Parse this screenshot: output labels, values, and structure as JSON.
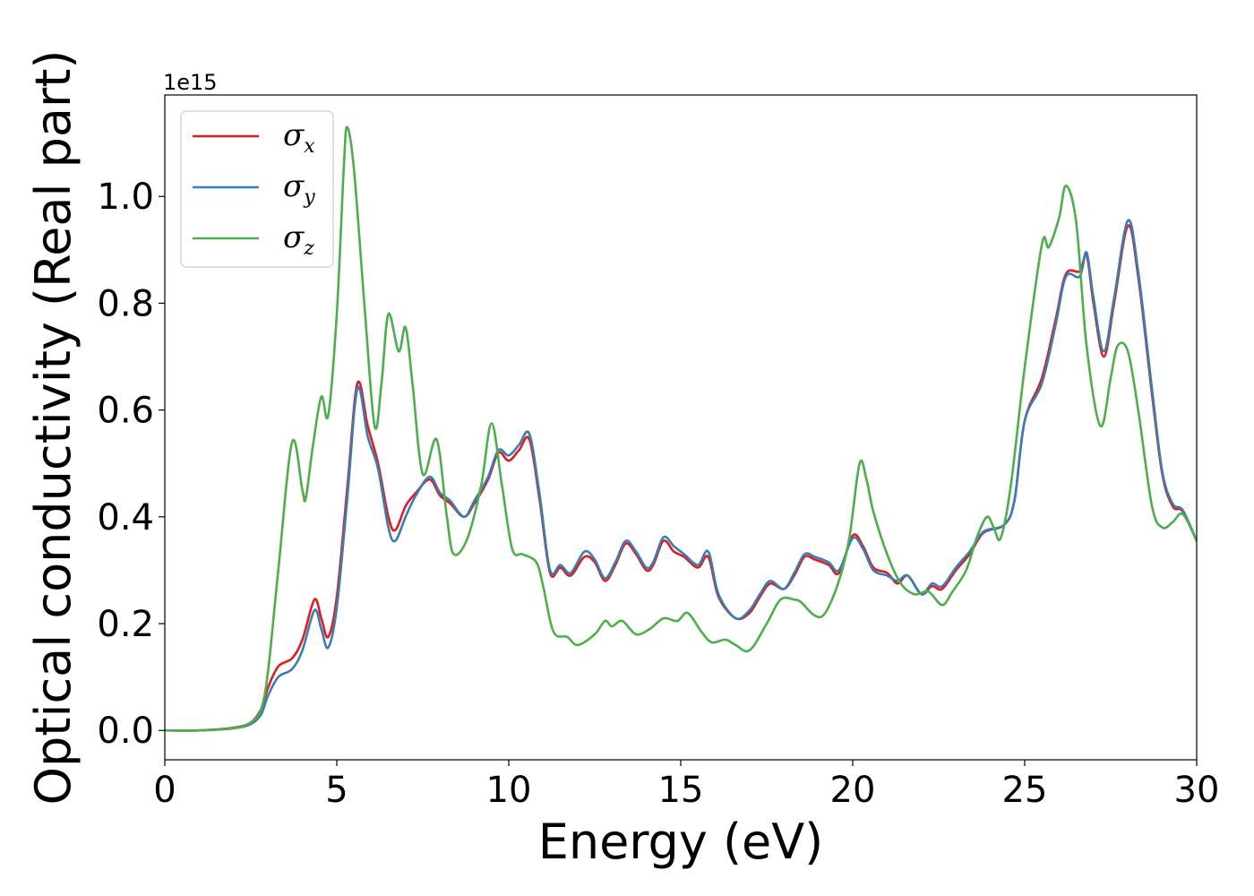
{
  "chart_data": {
    "type": "line",
    "xlabel": "Energy (eV)",
    "ylabel": "Optical conductivity (Real part)",
    "y_offset_text": "1e15",
    "xlim": [
      0,
      30
    ],
    "ylim": [
      -0.055,
      1.19
    ],
    "x_ticks": [
      0,
      5,
      10,
      15,
      20,
      25,
      30
    ],
    "x_tick_labels": [
      "0",
      "5",
      "10",
      "15",
      "20",
      "25",
      "30"
    ],
    "y_ticks": [
      0.0,
      0.2,
      0.4,
      0.6,
      0.8,
      1.0
    ],
    "y_tick_labels": [
      "0.0",
      "0.2",
      "0.4",
      "0.6",
      "0.8",
      "1.0"
    ],
    "grid": false,
    "legend_position": "upper-left",
    "series": [
      {
        "name": "σx",
        "base": "σ",
        "sub": "x",
        "color": "#e41a1c",
        "points": [
          [
            0,
            0
          ],
          [
            1,
            0
          ],
          [
            2,
            0.005
          ],
          [
            2.5,
            0.015
          ],
          [
            2.8,
            0.04
          ],
          [
            3.0,
            0.08
          ],
          [
            3.3,
            0.12
          ],
          [
            3.7,
            0.135
          ],
          [
            4.0,
            0.17
          ],
          [
            4.35,
            0.245
          ],
          [
            4.55,
            0.21
          ],
          [
            4.75,
            0.175
          ],
          [
            5.0,
            0.25
          ],
          [
            5.3,
            0.45
          ],
          [
            5.6,
            0.65
          ],
          [
            5.9,
            0.57
          ],
          [
            6.2,
            0.5
          ],
          [
            6.5,
            0.4
          ],
          [
            6.7,
            0.375
          ],
          [
            7.0,
            0.42
          ],
          [
            7.3,
            0.445
          ],
          [
            7.7,
            0.47
          ],
          [
            8.0,
            0.44
          ],
          [
            8.3,
            0.425
          ],
          [
            8.7,
            0.4
          ],
          [
            9.0,
            0.425
          ],
          [
            9.4,
            0.47
          ],
          [
            9.7,
            0.52
          ],
          [
            10.0,
            0.505
          ],
          [
            10.3,
            0.525
          ],
          [
            10.6,
            0.545
          ],
          [
            10.9,
            0.43
          ],
          [
            11.2,
            0.295
          ],
          [
            11.5,
            0.305
          ],
          [
            11.8,
            0.29
          ],
          [
            12.2,
            0.325
          ],
          [
            12.5,
            0.315
          ],
          [
            12.8,
            0.28
          ],
          [
            13.1,
            0.31
          ],
          [
            13.4,
            0.35
          ],
          [
            13.7,
            0.33
          ],
          [
            14.0,
            0.3
          ],
          [
            14.2,
            0.31
          ],
          [
            14.5,
            0.355
          ],
          [
            14.8,
            0.335
          ],
          [
            15.1,
            0.325
          ],
          [
            15.5,
            0.305
          ],
          [
            15.8,
            0.325
          ],
          [
            16.1,
            0.25
          ],
          [
            16.6,
            0.21
          ],
          [
            17.0,
            0.22
          ],
          [
            17.3,
            0.25
          ],
          [
            17.6,
            0.275
          ],
          [
            18.0,
            0.265
          ],
          [
            18.3,
            0.29
          ],
          [
            18.6,
            0.325
          ],
          [
            18.9,
            0.32
          ],
          [
            19.3,
            0.31
          ],
          [
            19.6,
            0.295
          ],
          [
            20.0,
            0.365
          ],
          [
            20.3,
            0.345
          ],
          [
            20.6,
            0.305
          ],
          [
            21.0,
            0.295
          ],
          [
            21.3,
            0.275
          ],
          [
            21.6,
            0.29
          ],
          [
            22.0,
            0.255
          ],
          [
            22.3,
            0.27
          ],
          [
            22.6,
            0.265
          ],
          [
            23.0,
            0.3
          ],
          [
            23.4,
            0.33
          ],
          [
            23.8,
            0.37
          ],
          [
            24.4,
            0.385
          ],
          [
            24.7,
            0.43
          ],
          [
            25.0,
            0.58
          ],
          [
            25.5,
            0.66
          ],
          [
            25.9,
            0.77
          ],
          [
            26.2,
            0.855
          ],
          [
            26.6,
            0.86
          ],
          [
            26.8,
            0.89
          ],
          [
            27.0,
            0.8
          ],
          [
            27.3,
            0.7
          ],
          [
            27.6,
            0.8
          ],
          [
            28.0,
            0.945
          ],
          [
            28.3,
            0.85
          ],
          [
            28.7,
            0.63
          ],
          [
            29.0,
            0.48
          ],
          [
            29.3,
            0.42
          ],
          [
            29.6,
            0.41
          ],
          [
            30.0,
            0.355
          ]
        ]
      },
      {
        "name": "σy",
        "base": "σ",
        "sub": "y",
        "color": "#377eb8",
        "points": [
          [
            0,
            0
          ],
          [
            1,
            0
          ],
          [
            2,
            0.004
          ],
          [
            2.5,
            0.012
          ],
          [
            2.8,
            0.03
          ],
          [
            3.0,
            0.065
          ],
          [
            3.3,
            0.1
          ],
          [
            3.7,
            0.115
          ],
          [
            4.0,
            0.15
          ],
          [
            4.35,
            0.225
          ],
          [
            4.55,
            0.19
          ],
          [
            4.75,
            0.155
          ],
          [
            5.0,
            0.23
          ],
          [
            5.3,
            0.43
          ],
          [
            5.6,
            0.64
          ],
          [
            5.9,
            0.55
          ],
          [
            6.2,
            0.49
          ],
          [
            6.5,
            0.38
          ],
          [
            6.7,
            0.355
          ],
          [
            7.0,
            0.4
          ],
          [
            7.3,
            0.44
          ],
          [
            7.7,
            0.475
          ],
          [
            8.0,
            0.445
          ],
          [
            8.3,
            0.43
          ],
          [
            8.7,
            0.4
          ],
          [
            9.0,
            0.43
          ],
          [
            9.4,
            0.475
          ],
          [
            9.7,
            0.525
          ],
          [
            10.0,
            0.515
          ],
          [
            10.3,
            0.535
          ],
          [
            10.6,
            0.555
          ],
          [
            10.9,
            0.44
          ],
          [
            11.2,
            0.3
          ],
          [
            11.5,
            0.31
          ],
          [
            11.8,
            0.295
          ],
          [
            12.2,
            0.335
          ],
          [
            12.5,
            0.32
          ],
          [
            12.8,
            0.285
          ],
          [
            13.1,
            0.315
          ],
          [
            13.4,
            0.355
          ],
          [
            13.7,
            0.335
          ],
          [
            14.0,
            0.305
          ],
          [
            14.2,
            0.315
          ],
          [
            14.5,
            0.362
          ],
          [
            14.8,
            0.345
          ],
          [
            15.1,
            0.33
          ],
          [
            15.5,
            0.31
          ],
          [
            15.8,
            0.335
          ],
          [
            16.1,
            0.255
          ],
          [
            16.6,
            0.21
          ],
          [
            17.0,
            0.225
          ],
          [
            17.3,
            0.255
          ],
          [
            17.6,
            0.28
          ],
          [
            18.0,
            0.265
          ],
          [
            18.3,
            0.295
          ],
          [
            18.6,
            0.33
          ],
          [
            18.9,
            0.325
          ],
          [
            19.3,
            0.315
          ],
          [
            19.6,
            0.3
          ],
          [
            20.0,
            0.36
          ],
          [
            20.3,
            0.34
          ],
          [
            20.6,
            0.3
          ],
          [
            21.0,
            0.29
          ],
          [
            21.3,
            0.28
          ],
          [
            21.6,
            0.29
          ],
          [
            22.0,
            0.255
          ],
          [
            22.3,
            0.275
          ],
          [
            22.6,
            0.27
          ],
          [
            23.0,
            0.305
          ],
          [
            23.4,
            0.335
          ],
          [
            23.8,
            0.372
          ],
          [
            24.4,
            0.385
          ],
          [
            24.7,
            0.43
          ],
          [
            25.0,
            0.58
          ],
          [
            25.5,
            0.65
          ],
          [
            25.9,
            0.76
          ],
          [
            26.2,
            0.85
          ],
          [
            26.6,
            0.85
          ],
          [
            26.8,
            0.895
          ],
          [
            27.0,
            0.81
          ],
          [
            27.3,
            0.71
          ],
          [
            27.6,
            0.81
          ],
          [
            28.0,
            0.955
          ],
          [
            28.3,
            0.86
          ],
          [
            28.7,
            0.64
          ],
          [
            29.0,
            0.485
          ],
          [
            29.3,
            0.425
          ],
          [
            29.6,
            0.412
          ],
          [
            30.0,
            0.355
          ]
        ]
      },
      {
        "name": "σz",
        "base": "σ",
        "sub": "z",
        "color": "#4daf4a",
        "points": [
          [
            0,
            0
          ],
          [
            1,
            0
          ],
          [
            2,
            0.004
          ],
          [
            2.5,
            0.015
          ],
          [
            2.8,
            0.04
          ],
          [
            3.0,
            0.11
          ],
          [
            3.3,
            0.3
          ],
          [
            3.7,
            0.54
          ],
          [
            4.0,
            0.45
          ],
          [
            4.1,
            0.435
          ],
          [
            4.3,
            0.53
          ],
          [
            4.55,
            0.625
          ],
          [
            4.75,
            0.59
          ],
          [
            5.0,
            0.78
          ],
          [
            5.2,
            1.05
          ],
          [
            5.3,
            1.13
          ],
          [
            5.5,
            1.05
          ],
          [
            5.8,
            0.8
          ],
          [
            6.1,
            0.57
          ],
          [
            6.3,
            0.65
          ],
          [
            6.5,
            0.78
          ],
          [
            6.8,
            0.71
          ],
          [
            7.0,
            0.755
          ],
          [
            7.2,
            0.65
          ],
          [
            7.5,
            0.48
          ],
          [
            7.9,
            0.545
          ],
          [
            8.2,
            0.4
          ],
          [
            8.4,
            0.33
          ],
          [
            8.8,
            0.36
          ],
          [
            9.2,
            0.46
          ],
          [
            9.5,
            0.575
          ],
          [
            9.8,
            0.46
          ],
          [
            10.1,
            0.34
          ],
          [
            10.4,
            0.33
          ],
          [
            10.8,
            0.315
          ],
          [
            11.0,
            0.27
          ],
          [
            11.3,
            0.185
          ],
          [
            11.7,
            0.175
          ],
          [
            12.0,
            0.16
          ],
          [
            12.5,
            0.18
          ],
          [
            12.8,
            0.205
          ],
          [
            13.0,
            0.195
          ],
          [
            13.3,
            0.205
          ],
          [
            13.7,
            0.18
          ],
          [
            14.1,
            0.19
          ],
          [
            14.5,
            0.21
          ],
          [
            14.9,
            0.205
          ],
          [
            15.2,
            0.22
          ],
          [
            15.6,
            0.185
          ],
          [
            15.9,
            0.165
          ],
          [
            16.3,
            0.17
          ],
          [
            16.6,
            0.16
          ],
          [
            17.0,
            0.15
          ],
          [
            17.5,
            0.2
          ],
          [
            17.9,
            0.245
          ],
          [
            18.3,
            0.245
          ],
          [
            18.5,
            0.24
          ],
          [
            18.9,
            0.215
          ],
          [
            19.2,
            0.22
          ],
          [
            19.6,
            0.28
          ],
          [
            19.9,
            0.36
          ],
          [
            20.2,
            0.5
          ],
          [
            20.4,
            0.47
          ],
          [
            20.6,
            0.41
          ],
          [
            21.0,
            0.33
          ],
          [
            21.4,
            0.275
          ],
          [
            21.8,
            0.255
          ],
          [
            22.2,
            0.26
          ],
          [
            22.6,
            0.235
          ],
          [
            22.9,
            0.26
          ],
          [
            23.3,
            0.3
          ],
          [
            23.6,
            0.36
          ],
          [
            23.9,
            0.4
          ],
          [
            24.1,
            0.38
          ],
          [
            24.3,
            0.36
          ],
          [
            24.6,
            0.46
          ],
          [
            25.0,
            0.68
          ],
          [
            25.5,
            0.91
          ],
          [
            25.7,
            0.905
          ],
          [
            26.0,
            0.96
          ],
          [
            26.2,
            1.02
          ],
          [
            26.5,
            0.95
          ],
          [
            26.8,
            0.72
          ],
          [
            27.2,
            0.57
          ],
          [
            27.5,
            0.66
          ],
          [
            27.7,
            0.72
          ],
          [
            28.0,
            0.71
          ],
          [
            28.3,
            0.6
          ],
          [
            28.7,
            0.42
          ],
          [
            29.0,
            0.38
          ],
          [
            29.3,
            0.39
          ],
          [
            29.6,
            0.405
          ],
          [
            30.0,
            0.355
          ]
        ]
      }
    ]
  }
}
